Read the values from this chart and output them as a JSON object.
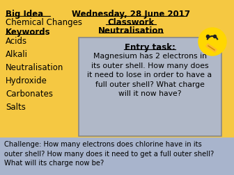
{
  "bg_color": "#F5C842",
  "title_date": "Wednesday, 28 June 2017",
  "title_classwork": "Classwork",
  "title_subject": "Neutralisation",
  "big_idea_label": "Big Idea",
  "chemical_changes": "Chemical Changes",
  "keywords_label": "Keywords",
  "keywords_list": [
    "Acids",
    "Alkali",
    "Neutralisation",
    "Hydroxide",
    "Carbonates",
    "Salts"
  ],
  "entry_task_title": "Entry task:",
  "entry_task_body": "Magnesium has 2 electrons in\nits outer shell. How many does\nit need to lose in order to have a\nfull outer shell? What charge\nwill it now have?",
  "entry_box_color": "#B0B8C8",
  "challenge_bg": "#A8B4CC",
  "challenge_text": "Challenge: How many electrons does chlorine have in its\nouter shell? How many does it need to get a full outer shell?\nWhat will its charge now be?",
  "font_color": "#000000"
}
